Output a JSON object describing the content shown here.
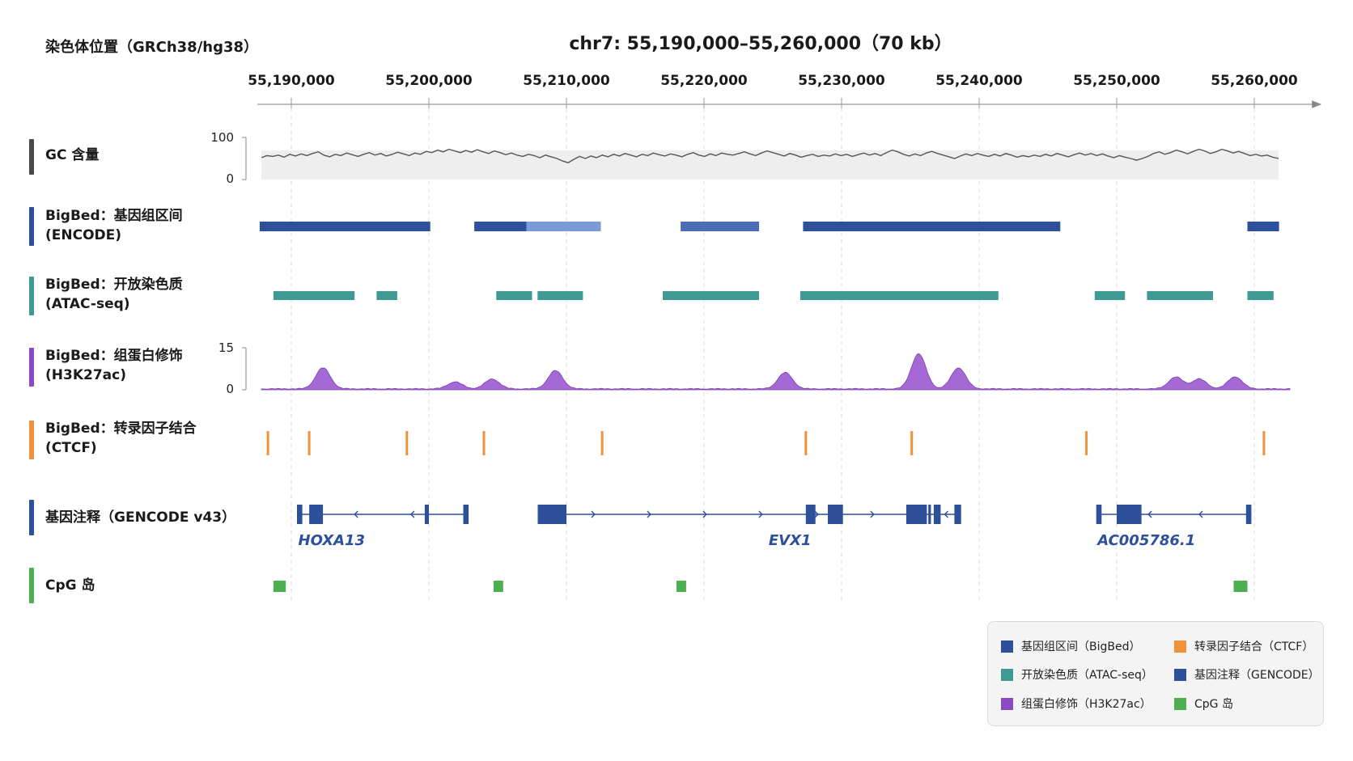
{
  "assembly_label": "染色体位置（GRCh38/hg38）",
  "title": "chr7: 55,190,000–55,260,000（70 kb）",
  "axis": {
    "start": 55188000,
    "end": 55264000,
    "ticks": [
      {
        "value": 55190000,
        "label": "55,190,000"
      },
      {
        "value": 55200000,
        "label": "55,200,000"
      },
      {
        "value": 55210000,
        "label": "55,210,000"
      },
      {
        "value": 55220000,
        "label": "55,220,000"
      },
      {
        "value": 55230000,
        "label": "55,230,000"
      },
      {
        "value": 55240000,
        "label": "55,240,000"
      },
      {
        "value": 55250000,
        "label": "55,250,000"
      },
      {
        "value": 55260000,
        "label": "55,260,000"
      }
    ]
  },
  "tracks": {
    "gc": {
      "label": "GC 含量",
      "color": "#4a4a4a",
      "ymin_label": "0",
      "ymax_label": "100",
      "ylim": [
        0,
        100
      ],
      "values": [
        52,
        57,
        55,
        58,
        53,
        60,
        56,
        61,
        57,
        62,
        66,
        58,
        54,
        60,
        57,
        63,
        59,
        55,
        60,
        64,
        58,
        62,
        56,
        60,
        65,
        61,
        57,
        63,
        60,
        67,
        64,
        70,
        66,
        72,
        68,
        64,
        69,
        65,
        71,
        66,
        62,
        68,
        64,
        59,
        63,
        58,
        55,
        60,
        57,
        52,
        58,
        54,
        50,
        44,
        40,
        48,
        55,
        50,
        56,
        52,
        58,
        54,
        60,
        56,
        62,
        58,
        54,
        60,
        57,
        63,
        59,
        56,
        61,
        58,
        54,
        60,
        64,
        58,
        55,
        61,
        57,
        63,
        60,
        58,
        62,
        66,
        61,
        57,
        63,
        68,
        64,
        60,
        56,
        62,
        58,
        53,
        57,
        60,
        55,
        58,
        56,
        61,
        57,
        60,
        55,
        59,
        63,
        58,
        62,
        57,
        64,
        70,
        66,
        60,
        56,
        61,
        57,
        63,
        67,
        62,
        58,
        54,
        50,
        56,
        61,
        57,
        62,
        58,
        55,
        60,
        56,
        62,
        58,
        53,
        57,
        54,
        58,
        55,
        60,
        56,
        62,
        58,
        54,
        59,
        63,
        58,
        62,
        57,
        61,
        56,
        52,
        57,
        53,
        50,
        46,
        50,
        55,
        62,
        66,
        60,
        64,
        70,
        66,
        61,
        67,
        72,
        68,
        62,
        66,
        72,
        68,
        63,
        67,
        62,
        57,
        60,
        56,
        58,
        53,
        50
      ]
    },
    "encode": {
      "label": "BigBed：基因组区间",
      "sublabel": "(ENCODE)",
      "color": "#2e4f9a",
      "segments": [
        {
          "start": 55187700,
          "end": 55200100,
          "color": "#2e4f9a"
        },
        {
          "start": 55203300,
          "end": 55207100,
          "color": "#2e4f9a"
        },
        {
          "start": 55207100,
          "end": 55212500,
          "color": "#7b9ad8"
        },
        {
          "start": 55218300,
          "end": 55224000,
          "color": "#4d6cb8"
        },
        {
          "start": 55227200,
          "end": 55245900,
          "color": "#2e4f9a"
        },
        {
          "start": 55259500,
          "end": 55261800,
          "color": "#2e4f9a"
        }
      ]
    },
    "atac": {
      "label": "BigBed：开放染色质",
      "sublabel": "(ATAC-seq)",
      "color": "#3e9a92",
      "segments": [
        {
          "start": 55188700,
          "end": 55194600
        },
        {
          "start": 55196200,
          "end": 55197700
        },
        {
          "start": 55204900,
          "end": 55207500
        },
        {
          "start": 55207900,
          "end": 55211200
        },
        {
          "start": 55217000,
          "end": 55224000
        },
        {
          "start": 55227000,
          "end": 55241400
        },
        {
          "start": 55248400,
          "end": 55250600
        },
        {
          "start": 55252200,
          "end": 55257000
        },
        {
          "start": 55259500,
          "end": 55261400
        }
      ]
    },
    "h3k27ac": {
      "label": "BigBed：组蛋白修饰",
      "sublabel": "(H3K27ac)",
      "color": "#8b49c4",
      "ymin_label": "0",
      "ymax_label": "15",
      "ylim": [
        0,
        15
      ],
      "peaks": [
        {
          "pos": 55192300,
          "height": 7.5
        },
        {
          "pos": 55201900,
          "height": 2.5
        },
        {
          "pos": 55204600,
          "height": 3.5
        },
        {
          "pos": 55209200,
          "height": 6.5
        },
        {
          "pos": 55225900,
          "height": 5.8
        },
        {
          "pos": 55235600,
          "height": 12.5
        },
        {
          "pos": 55238500,
          "height": 7.5
        },
        {
          "pos": 55254300,
          "height": 4.2
        },
        {
          "pos": 55256000,
          "height": 3.5
        },
        {
          "pos": 55258600,
          "height": 4.3
        }
      ]
    },
    "ctcf": {
      "label": "BigBed：转录因子结合",
      "sublabel": "(CTCF)",
      "color": "#f0923a",
      "sites": [
        55188300,
        55191300,
        55198400,
        55204000,
        55212600,
        55227400,
        55235100,
        55247800,
        55260700
      ]
    },
    "genes": {
      "label": "基因注释（GENCODE v43）",
      "color": "#2e4f9a",
      "items": [
        {
          "name": "HOXA13",
          "label_pos": 55190500,
          "start": 55190500,
          "end": 55202800,
          "direction": "-",
          "exons": [
            {
              "start": 55190500,
              "end": 55190800
            },
            {
              "start": 55191300,
              "end": 55192300
            },
            {
              "start": 55199700,
              "end": 55200000
            },
            {
              "start": 55202500,
              "end": 55202800
            }
          ]
        },
        {
          "name": "EVX1",
          "label_pos": 55224700,
          "start": 55208000,
          "end": 55236400,
          "direction": "+",
          "exons": [
            {
              "start": 55208000,
              "end": 55210000
            },
            {
              "start": 55227400,
              "end": 55228100
            },
            {
              "start": 55229000,
              "end": 55230100
            },
            {
              "start": 55234700,
              "end": 55236200
            }
          ]
        },
        {
          "name": "",
          "label_pos": 55240000,
          "start": 55236400,
          "end": 55238600,
          "direction": "-",
          "exons": [
            {
              "start": 55236700,
              "end": 55237200
            },
            {
              "start": 55238200,
              "end": 55238600
            }
          ]
        },
        {
          "name": "AC005786.1",
          "label_pos": 55248600,
          "start": 55248600,
          "end": 55259700,
          "direction": "-",
          "exons": [
            {
              "start": 55248600,
              "end": 55248900
            },
            {
              "start": 55250000,
              "end": 55251800
            },
            {
              "start": 55259400,
              "end": 55259700
            }
          ]
        }
      ]
    },
    "cpg": {
      "label": "CpG 岛",
      "color": "#4caf50",
      "islands": [
        {
          "start": 55188700,
          "end": 55189600
        },
        {
          "start": 55204700,
          "end": 55205400
        },
        {
          "start": 55218000,
          "end": 55218700
        },
        {
          "start": 55258500,
          "end": 55259500
        }
      ]
    }
  },
  "legend": {
    "items": [
      {
        "label": "基因组区间（BigBed）",
        "color": "#2e4f9a"
      },
      {
        "label": "转录因子结合（CTCF）",
        "color": "#f0923a"
      },
      {
        "label": "开放染色质（ATAC-seq）",
        "color": "#3e9a92"
      },
      {
        "label": "基因注释（GENCODE）",
        "color": "#2e4f9a"
      },
      {
        "label": "组蛋白修饰（H3K27ac）",
        "color": "#8b49c4"
      },
      {
        "label": "CpG 岛",
        "color": "#4caf50"
      }
    ]
  }
}
